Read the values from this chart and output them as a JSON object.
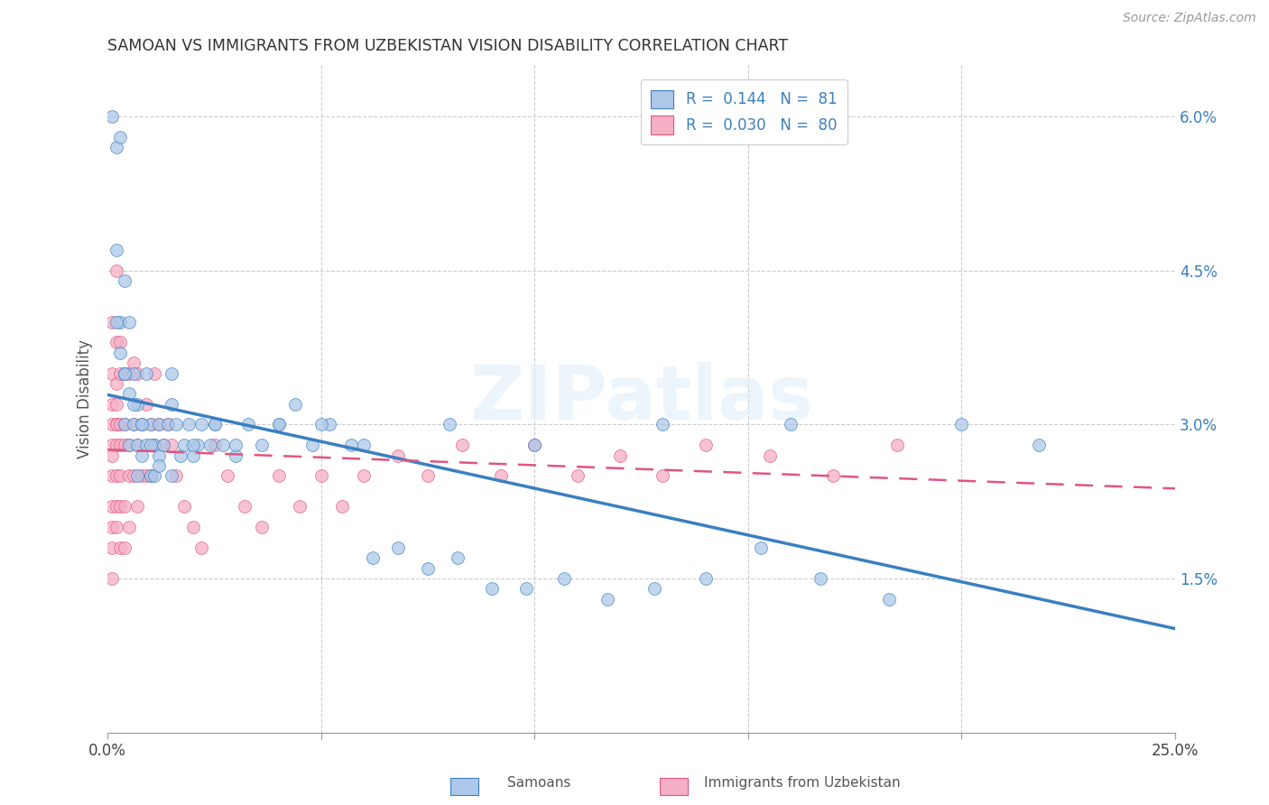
{
  "title": "SAMOAN VS IMMIGRANTS FROM UZBEKISTAN VISION DISABILITY CORRELATION CHART",
  "source": "Source: ZipAtlas.com",
  "ylabel": "Vision Disability",
  "watermark": "ZIPatlas",
  "xlim": [
    0.0,
    0.25
  ],
  "ylim": [
    0.0,
    0.065
  ],
  "yticks": [
    0.015,
    0.03,
    0.045,
    0.06
  ],
  "ytick_labels": [
    "1.5%",
    "3.0%",
    "4.5%",
    "6.0%"
  ],
  "xticks": [
    0.0,
    0.05,
    0.1,
    0.15,
    0.2,
    0.25
  ],
  "samoans_color": "#adc8e8",
  "uzbekistan_color": "#f5afc5",
  "line_samoan_color": "#3a7fc1",
  "line_uzbekistan_color": "#e05580",
  "samoans_x": [
    0.001,
    0.002,
    0.002,
    0.003,
    0.003,
    0.003,
    0.004,
    0.004,
    0.004,
    0.005,
    0.005,
    0.005,
    0.006,
    0.006,
    0.007,
    0.007,
    0.007,
    0.008,
    0.008,
    0.009,
    0.009,
    0.01,
    0.01,
    0.011,
    0.011,
    0.012,
    0.012,
    0.013,
    0.014,
    0.015,
    0.015,
    0.016,
    0.017,
    0.018,
    0.019,
    0.02,
    0.021,
    0.022,
    0.024,
    0.025,
    0.027,
    0.03,
    0.033,
    0.036,
    0.04,
    0.044,
    0.048,
    0.052,
    0.057,
    0.062,
    0.068,
    0.075,
    0.082,
    0.09,
    0.098,
    0.107,
    0.117,
    0.128,
    0.14,
    0.153,
    0.167,
    0.183,
    0.2,
    0.218,
    0.002,
    0.004,
    0.006,
    0.008,
    0.01,
    0.012,
    0.015,
    0.02,
    0.025,
    0.03,
    0.04,
    0.05,
    0.06,
    0.08,
    0.1,
    0.13,
    0.16
  ],
  "samoans_y": [
    0.06,
    0.057,
    0.047,
    0.04,
    0.037,
    0.058,
    0.044,
    0.03,
    0.035,
    0.04,
    0.028,
    0.033,
    0.035,
    0.03,
    0.032,
    0.028,
    0.025,
    0.03,
    0.027,
    0.035,
    0.028,
    0.03,
    0.025,
    0.028,
    0.025,
    0.03,
    0.027,
    0.028,
    0.03,
    0.035,
    0.032,
    0.03,
    0.027,
    0.028,
    0.03,
    0.027,
    0.028,
    0.03,
    0.028,
    0.03,
    0.028,
    0.027,
    0.03,
    0.028,
    0.03,
    0.032,
    0.028,
    0.03,
    0.028,
    0.017,
    0.018,
    0.016,
    0.017,
    0.014,
    0.014,
    0.015,
    0.013,
    0.014,
    0.015,
    0.018,
    0.015,
    0.013,
    0.03,
    0.028,
    0.04,
    0.035,
    0.032,
    0.03,
    0.028,
    0.026,
    0.025,
    0.028,
    0.03,
    0.028,
    0.03,
    0.03,
    0.028,
    0.03,
    0.028,
    0.03,
    0.03
  ],
  "uzbekistan_x": [
    0.001,
    0.001,
    0.001,
    0.001,
    0.001,
    0.001,
    0.001,
    0.001,
    0.001,
    0.001,
    0.001,
    0.002,
    0.002,
    0.002,
    0.002,
    0.002,
    0.002,
    0.002,
    0.002,
    0.002,
    0.002,
    0.003,
    0.003,
    0.003,
    0.003,
    0.003,
    0.003,
    0.003,
    0.004,
    0.004,
    0.004,
    0.004,
    0.004,
    0.005,
    0.005,
    0.005,
    0.005,
    0.006,
    0.006,
    0.006,
    0.007,
    0.007,
    0.007,
    0.008,
    0.008,
    0.009,
    0.009,
    0.01,
    0.01,
    0.011,
    0.011,
    0.012,
    0.013,
    0.014,
    0.015,
    0.016,
    0.018,
    0.02,
    0.022,
    0.025,
    0.028,
    0.032,
    0.036,
    0.04,
    0.045,
    0.05,
    0.055,
    0.06,
    0.068,
    0.075,
    0.083,
    0.092,
    0.1,
    0.11,
    0.12,
    0.13,
    0.14,
    0.155,
    0.17,
    0.185
  ],
  "uzbekistan_y": [
    0.03,
    0.025,
    0.022,
    0.028,
    0.02,
    0.018,
    0.015,
    0.032,
    0.027,
    0.035,
    0.04,
    0.032,
    0.028,
    0.025,
    0.03,
    0.022,
    0.02,
    0.038,
    0.034,
    0.03,
    0.045,
    0.035,
    0.03,
    0.028,
    0.038,
    0.025,
    0.022,
    0.018,
    0.03,
    0.035,
    0.028,
    0.022,
    0.018,
    0.035,
    0.028,
    0.025,
    0.02,
    0.036,
    0.03,
    0.025,
    0.035,
    0.028,
    0.022,
    0.03,
    0.025,
    0.032,
    0.025,
    0.03,
    0.025,
    0.035,
    0.028,
    0.03,
    0.028,
    0.03,
    0.028,
    0.025,
    0.022,
    0.02,
    0.018,
    0.028,
    0.025,
    0.022,
    0.02,
    0.025,
    0.022,
    0.025,
    0.022,
    0.025,
    0.027,
    0.025,
    0.028,
    0.025,
    0.028,
    0.025,
    0.027,
    0.025,
    0.028,
    0.027,
    0.025,
    0.028
  ]
}
